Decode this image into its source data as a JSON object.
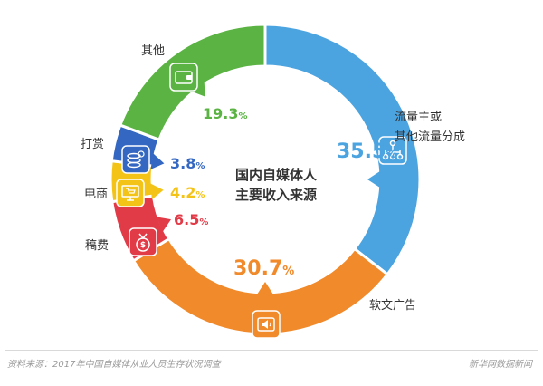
{
  "chart_data": {
    "type": "pie",
    "title": "国内自媒体人主要收入来源",
    "title_lines": [
      "国内自媒体人",
      "主要收入来源"
    ],
    "slices": [
      {
        "label_lines": [
          "流量主或",
          "其他流量分成"
        ],
        "value": 35.5,
        "value_text": "35.5",
        "unit": "%",
        "color": "#4ba3e0",
        "icon": "network-icon"
      },
      {
        "label_lines": [
          "软文广告"
        ],
        "value": 30.7,
        "value_text": "30.7",
        "unit": "%",
        "color": "#f08a2b",
        "icon": "speaker-icon"
      },
      {
        "label_lines": [
          "稿费"
        ],
        "value": 6.5,
        "value_text": "6.5",
        "unit": "%",
        "color": "#e23b48",
        "icon": "moneybag-icon"
      },
      {
        "label_lines": [
          "电商"
        ],
        "value": 4.2,
        "value_text": "4.2",
        "unit": "%",
        "color": "#f4c318",
        "icon": "cart-screen-icon"
      },
      {
        "label_lines": [
          "打赏"
        ],
        "value": 3.8,
        "value_text": "3.8",
        "unit": "%",
        "color": "#3467c1",
        "icon": "coins-icon"
      },
      {
        "label_lines": [
          "其他"
        ],
        "value": 19.3,
        "value_text": "19.3",
        "unit": "%",
        "color": "#5ab342",
        "icon": "wallet-icon"
      }
    ]
  },
  "footer": {
    "source": "资料来源：2017年中国自媒体从业人员生存状况调查",
    "brand": "新华网数据新闻"
  }
}
